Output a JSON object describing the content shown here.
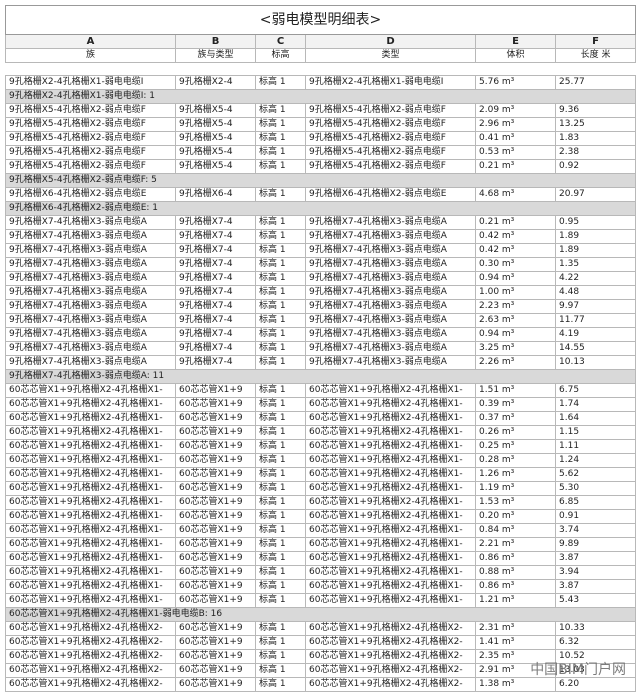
{
  "title": "<弱电模型明细表>",
  "column_letters": [
    "A",
    "B",
    "C",
    "D",
    "E",
    "F"
  ],
  "headers": [
    "族",
    "族与类型",
    "标高",
    "类型",
    "体积",
    "长度 米"
  ],
  "rows": [
    [
      "9孔格栅X2-4孔格栅X1-弱电电缆I",
      "9孔格栅X2-4",
      "标高 1",
      "9孔格栅X2-4孔格栅X1-弱电电缆I",
      "5.76 m³",
      "25.77"
    ],
    [
      "9孔格栅X2-4孔格栅X1-弱电电缆I: 1"
    ],
    [
      "9孔格栅X5-4孔格栅X2-弱点电缆F",
      "9孔格栅X5-4",
      "标高 1",
      "9孔格栅X5-4孔格栅X2-弱点电缆F",
      "2.09 m³",
      "9.36"
    ],
    [
      "9孔格栅X5-4孔格栅X2-弱点电缆F",
      "9孔格栅X5-4",
      "标高 1",
      "9孔格栅X5-4孔格栅X2-弱点电缆F",
      "2.96 m³",
      "13.25"
    ],
    [
      "9孔格栅X5-4孔格栅X2-弱点电缆F",
      "9孔格栅X5-4",
      "标高 1",
      "9孔格栅X5-4孔格栅X2-弱点电缆F",
      "0.41 m³",
      "1.83"
    ],
    [
      "9孔格栅X5-4孔格栅X2-弱点电缆F",
      "9孔格栅X5-4",
      "标高 1",
      "9孔格栅X5-4孔格栅X2-弱点电缆F",
      "0.53 m³",
      "2.38"
    ],
    [
      "9孔格栅X5-4孔格栅X2-弱点电缆F",
      "9孔格栅X5-4",
      "标高 1",
      "9孔格栅X5-4孔格栅X2-弱点电缆F",
      "0.21 m³",
      "0.92"
    ],
    [
      "9孔格栅X5-4孔格栅X2-弱点电缆F: 5"
    ],
    [
      "9孔格栅X6-4孔格栅X2-弱点电缆E",
      "9孔格栅X6-4",
      "标高 1",
      "9孔格栅X6-4孔格栅X2-弱点电缆E",
      "4.68 m³",
      "20.97"
    ],
    [
      "9孔格栅X6-4孔格栅X2-弱点电缆E: 1"
    ],
    [
      "9孔格栅X7-4孔格栅X3-弱点电缆A",
      "9孔格栅X7-4",
      "标高 1",
      "9孔格栅X7-4孔格栅X3-弱点电缆A",
      "0.21 m³",
      "0.95"
    ],
    [
      "9孔格栅X7-4孔格栅X3-弱点电缆A",
      "9孔格栅X7-4",
      "标高 1",
      "9孔格栅X7-4孔格栅X3-弱点电缆A",
      "0.42 m³",
      "1.89"
    ],
    [
      "9孔格栅X7-4孔格栅X3-弱点电缆A",
      "9孔格栅X7-4",
      "标高 1",
      "9孔格栅X7-4孔格栅X3-弱点电缆A",
      "0.42 m³",
      "1.89"
    ],
    [
      "9孔格栅X7-4孔格栅X3-弱点电缆A",
      "9孔格栅X7-4",
      "标高 1",
      "9孔格栅X7-4孔格栅X3-弱点电缆A",
      "0.30 m³",
      "1.35"
    ],
    [
      "9孔格栅X7-4孔格栅X3-弱点电缆A",
      "9孔格栅X7-4",
      "标高 1",
      "9孔格栅X7-4孔格栅X3-弱点电缆A",
      "0.94 m³",
      "4.22"
    ],
    [
      "9孔格栅X7-4孔格栅X3-弱点电缆A",
      "9孔格栅X7-4",
      "标高 1",
      "9孔格栅X7-4孔格栅X3-弱点电缆A",
      "1.00 m³",
      "4.48"
    ],
    [
      "9孔格栅X7-4孔格栅X3-弱点电缆A",
      "9孔格栅X7-4",
      "标高 1",
      "9孔格栅X7-4孔格栅X3-弱点电缆A",
      "2.23 m³",
      "9.97"
    ],
    [
      "9孔格栅X7-4孔格栅X3-弱点电缆A",
      "9孔格栅X7-4",
      "标高 1",
      "9孔格栅X7-4孔格栅X3-弱点电缆A",
      "2.63 m³",
      "11.77"
    ],
    [
      "9孔格栅X7-4孔格栅X3-弱点电缆A",
      "9孔格栅X7-4",
      "标高 1",
      "9孔格栅X7-4孔格栅X3-弱点电缆A",
      "0.94 m³",
      "4.19"
    ],
    [
      "9孔格栅X7-4孔格栅X3-弱点电缆A",
      "9孔格栅X7-4",
      "标高 1",
      "9孔格栅X7-4孔格栅X3-弱点电缆A",
      "3.25 m³",
      "14.55"
    ],
    [
      "9孔格栅X7-4孔格栅X3-弱点电缆A",
      "9孔格栅X7-4",
      "标高 1",
      "9孔格栅X7-4孔格栅X3-弱点电缆A",
      "2.26 m³",
      "10.13"
    ],
    [
      "9孔格栅X7-4孔格栅X3-弱点电缆A: 11"
    ],
    [
      "60芯芯管X1+9孔格栅X2-4孔格栅X1-",
      "60芯芯管X1+9",
      "标高 1",
      "60芯芯管X1+9孔格栅X2-4孔格栅X1-",
      "1.51 m³",
      "6.75"
    ],
    [
      "60芯芯管X1+9孔格栅X2-4孔格栅X1-",
      "60芯芯管X1+9",
      "标高 1",
      "60芯芯管X1+9孔格栅X2-4孔格栅X1-",
      "0.39 m³",
      "1.74"
    ],
    [
      "60芯芯管X1+9孔格栅X2-4孔格栅X1-",
      "60芯芯管X1+9",
      "标高 1",
      "60芯芯管X1+9孔格栅X2-4孔格栅X1-",
      "0.37 m³",
      "1.64"
    ],
    [
      "60芯芯管X1+9孔格栅X2-4孔格栅X1-",
      "60芯芯管X1+9",
      "标高 1",
      "60芯芯管X1+9孔格栅X2-4孔格栅X1-",
      "0.26 m³",
      "1.15"
    ],
    [
      "60芯芯管X1+9孔格栅X2-4孔格栅X1-",
      "60芯芯管X1+9",
      "标高 1",
      "60芯芯管X1+9孔格栅X2-4孔格栅X1-",
      "0.25 m³",
      "1.11"
    ],
    [
      "60芯芯管X1+9孔格栅X2-4孔格栅X1-",
      "60芯芯管X1+9",
      "标高 1",
      "60芯芯管X1+9孔格栅X2-4孔格栅X1-",
      "0.28 m³",
      "1.24"
    ],
    [
      "60芯芯管X1+9孔格栅X2-4孔格栅X1-",
      "60芯芯管X1+9",
      "标高 1",
      "60芯芯管X1+9孔格栅X2-4孔格栅X1-",
      "1.26 m³",
      "5.62"
    ],
    [
      "60芯芯管X1+9孔格栅X2-4孔格栅X1-",
      "60芯芯管X1+9",
      "标高 1",
      "60芯芯管X1+9孔格栅X2-4孔格栅X1-",
      "1.19 m³",
      "5.30"
    ],
    [
      "60芯芯管X1+9孔格栅X2-4孔格栅X1-",
      "60芯芯管X1+9",
      "标高 1",
      "60芯芯管X1+9孔格栅X2-4孔格栅X1-",
      "1.53 m³",
      "6.85"
    ],
    [
      "60芯芯管X1+9孔格栅X2-4孔格栅X1-",
      "60芯芯管X1+9",
      "标高 1",
      "60芯芯管X1+9孔格栅X2-4孔格栅X1-",
      "0.20 m³",
      "0.91"
    ],
    [
      "60芯芯管X1+9孔格栅X2-4孔格栅X1-",
      "60芯芯管X1+9",
      "标高 1",
      "60芯芯管X1+9孔格栅X2-4孔格栅X1-",
      "0.84 m³",
      "3.74"
    ],
    [
      "60芯芯管X1+9孔格栅X2-4孔格栅X1-",
      "60芯芯管X1+9",
      "标高 1",
      "60芯芯管X1+9孔格栅X2-4孔格栅X1-",
      "2.21 m³",
      "9.89"
    ],
    [
      "60芯芯管X1+9孔格栅X2-4孔格栅X1-",
      "60芯芯管X1+9",
      "标高 1",
      "60芯芯管X1+9孔格栅X2-4孔格栅X1-",
      "0.86 m³",
      "3.87"
    ],
    [
      "60芯芯管X1+9孔格栅X2-4孔格栅X1-",
      "60芯芯管X1+9",
      "标高 1",
      "60芯芯管X1+9孔格栅X2-4孔格栅X1-",
      "0.88 m³",
      "3.94"
    ],
    [
      "60芯芯管X1+9孔格栅X2-4孔格栅X1-",
      "60芯芯管X1+9",
      "标高 1",
      "60芯芯管X1+9孔格栅X2-4孔格栅X1-",
      "0.86 m³",
      "3.87"
    ],
    [
      "60芯芯管X1+9孔格栅X2-4孔格栅X1-",
      "60芯芯管X1+9",
      "标高 1",
      "60芯芯管X1+9孔格栅X2-4孔格栅X1-",
      "1.21 m³",
      "5.43"
    ],
    [
      "60芯芯管X1+9孔格栅X2-4孔格栅X1-弱电电缆B: 16"
    ],
    [
      "60芯芯管X1+9孔格栅X2-4孔格栅X2-",
      "60芯芯管X1+9",
      "标高 1",
      "60芯芯管X1+9孔格栅X2-4孔格栅X2-",
      "2.31 m³",
      "10.33"
    ],
    [
      "60芯芯管X1+9孔格栅X2-4孔格栅X2-",
      "60芯芯管X1+9",
      "标高 1",
      "60芯芯管X1+9孔格栅X2-4孔格栅X2-",
      "1.41 m³",
      "6.32"
    ],
    [
      "60芯芯管X1+9孔格栅X2-4孔格栅X2-",
      "60芯芯管X1+9",
      "标高 1",
      "60芯芯管X1+9孔格栅X2-4孔格栅X2-",
      "2.35 m³",
      "10.52"
    ],
    [
      "60芯芯管X1+9孔格栅X2-4孔格栅X2-",
      "60芯芯管X1+9",
      "标高 1",
      "60芯芯管X1+9孔格栅X2-4孔格栅X2-",
      "2.91 m³",
      "13.03"
    ],
    [
      "60芯芯管X1+9孔格栅X2-4孔格栅X2-",
      "60芯芯管X1+9",
      "标高 1",
      "60芯芯管X1+9孔格栅X2-4孔格栅X2-",
      "1.38 m³",
      "6.20"
    ]
  ],
  "watermark": "中国BIM门户网"
}
